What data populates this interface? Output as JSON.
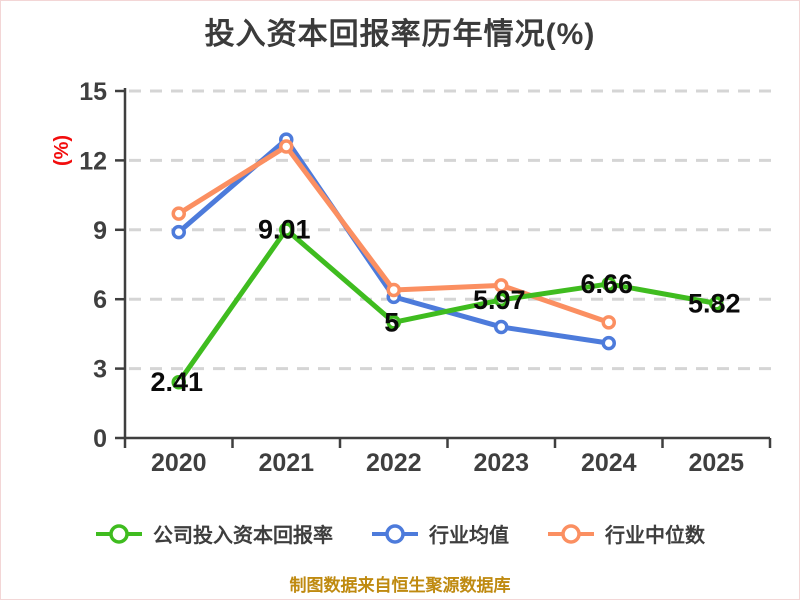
{
  "title": "投入资本回报率历年情况(%)",
  "footer": "制图数据来自恒生聚源数据库",
  "colors": {
    "background": "#ffffff",
    "axis": "#3f3f3f",
    "grid": "#d5d5d5",
    "data_label": "#0a0a0a",
    "unit_label": "#f20d0d",
    "footer_text": "#bf8a10",
    "series_company_green": "#3fbc1f",
    "series_industry_mean_blue": "#4d7bdb",
    "series_industry_median_orange": "#fb8f61"
  },
  "chart_data": {
    "type": "line",
    "title": "投入资本回报率历年情况(%)",
    "xlabel": "",
    "ylabel": "(%)",
    "categories": [
      "2020",
      "2021",
      "2022",
      "2023",
      "2024",
      "2025"
    ],
    "ylim": [
      0,
      15
    ],
    "y_ticks": [
      0,
      3,
      6,
      9,
      12,
      15
    ],
    "grid": "horizontal-dashed",
    "legend_position": "bottom",
    "marker_style": "circle-white-fill",
    "series": [
      {
        "name": "公司投入资本回报率",
        "color": "#3fbc1f",
        "values": [
          2.41,
          9.01,
          5,
          5.97,
          6.66,
          5.82
        ],
        "data_labels": [
          "2.41",
          "9.01",
          "5",
          "5.97",
          "6.66",
          "5.82"
        ],
        "labeled": true
      },
      {
        "name": "行业均值",
        "color": "#4d7bdb",
        "values": [
          8.9,
          12.9,
          6.1,
          4.8,
          4.1,
          null
        ],
        "data_labels": [],
        "labeled": false
      },
      {
        "name": "行业中位数",
        "color": "#fb8f61",
        "values": [
          9.7,
          12.6,
          6.4,
          6.6,
          5.0,
          null
        ],
        "data_labels": [],
        "labeled": false
      }
    ]
  }
}
